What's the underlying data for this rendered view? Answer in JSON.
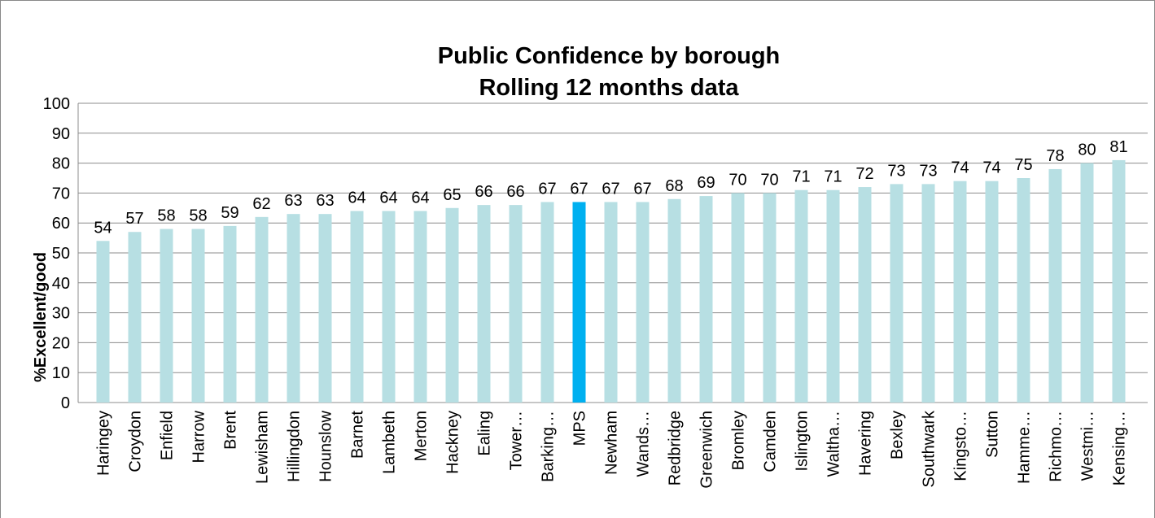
{
  "chart_data": {
    "type": "bar",
    "title": "Public Confidence by borough",
    "subtitle": "Rolling 12 months data",
    "y_label": "%Excellent/good",
    "categories": [
      "Haringey",
      "Croydon",
      "Enfield",
      "Harrow",
      "Brent",
      "Lewisham",
      "Hillingdon",
      "Hounslow",
      "Barnet",
      "Lambeth",
      "Merton",
      "Hackney",
      "Ealing",
      "Tower…",
      "Barking…",
      "MPS",
      "Newham",
      "Wands…",
      "Redbridge",
      "Greenwich",
      "Bromley",
      "Camden",
      "Islington",
      "Waltha…",
      "Havering",
      "Bexley",
      "Southwark",
      "Kingsto…",
      "Sutton",
      "Hamme…",
      "Richmo…",
      "Westmi…",
      "Kensing…"
    ],
    "values": [
      54,
      57,
      58,
      58,
      59,
      62,
      63,
      63,
      64,
      64,
      64,
      65,
      66,
      66,
      67,
      67,
      67,
      67,
      68,
      69,
      70,
      70,
      71,
      71,
      72,
      73,
      73,
      74,
      74,
      75,
      78,
      80,
      81
    ],
    "colors": [
      "#b7dfe3",
      "#b7dfe3",
      "#b7dfe3",
      "#b7dfe3",
      "#b7dfe3",
      "#b7dfe3",
      "#b7dfe3",
      "#b7dfe3",
      "#b7dfe3",
      "#b7dfe3",
      "#b7dfe3",
      "#b7dfe3",
      "#b7dfe3",
      "#b7dfe3",
      "#b7dfe3",
      "#00b0f0",
      "#b7dfe3",
      "#b7dfe3",
      "#b7dfe3",
      "#b7dfe3",
      "#b7dfe3",
      "#b7dfe3",
      "#b7dfe3",
      "#b7dfe3",
      "#b7dfe3",
      "#b7dfe3",
      "#b7dfe3",
      "#b7dfe3",
      "#b7dfe3",
      "#b7dfe3",
      "#b7dfe3",
      "#b7dfe3",
      "#b7dfe3"
    ],
    "ylim": [
      0,
      100
    ],
    "yticks": [
      0,
      10,
      20,
      30,
      40,
      50,
      60,
      70,
      80,
      90,
      100
    ],
    "grid": true
  }
}
